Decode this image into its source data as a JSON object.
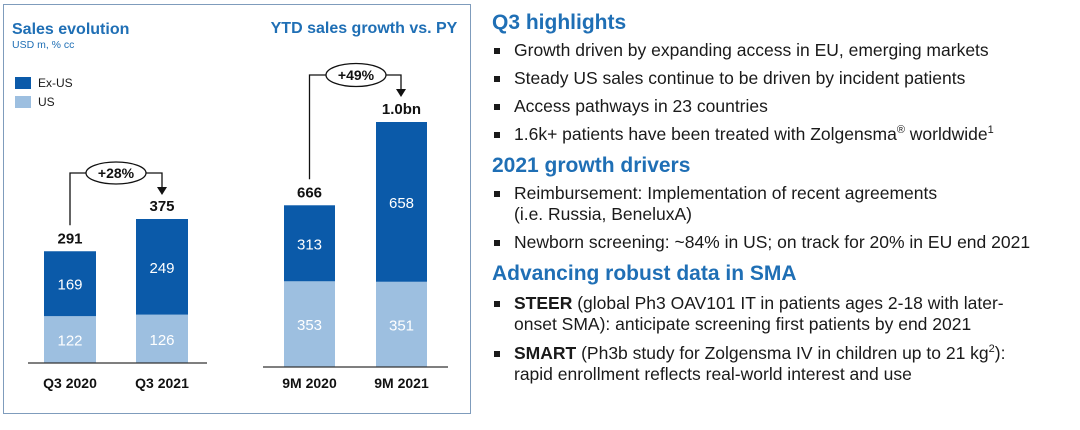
{
  "colors": {
    "ex_us": "#0b5aa9",
    "us": "#9dbfe0",
    "title_blue": "#1f6fb5",
    "panel_border": "#7f9cbc"
  },
  "legend": [
    {
      "label": "Ex-US",
      "color": "#0b5aa9"
    },
    {
      "label": "US",
      "color": "#9dbfe0"
    }
  ],
  "chart_data": [
    {
      "type": "bar",
      "stacked": true,
      "title": "Sales evolution",
      "subtitle": "USD m, % cc",
      "categories": [
        "Q3 2020",
        "Q3 2021"
      ],
      "series": [
        {
          "name": "US",
          "values": [
            122,
            126
          ]
        },
        {
          "name": "Ex-US",
          "values": [
            169,
            249
          ]
        }
      ],
      "totals": [
        "291",
        "375"
      ],
      "growth_label": "+28%",
      "legend_position": "top-left",
      "grid": false
    },
    {
      "type": "bar",
      "stacked": true,
      "title": "YTD sales growth vs. PY",
      "categories": [
        "9M 2020",
        "9M 2021"
      ],
      "series": [
        {
          "name": "US",
          "values": [
            353,
            351
          ]
        },
        {
          "name": "Ex-US",
          "values": [
            313,
            658
          ]
        }
      ],
      "totals": [
        "666",
        "1.0bn"
      ],
      "growth_label": "+49%",
      "grid": false
    }
  ],
  "highlights": {
    "title": "Q3 highlights",
    "items": [
      "Growth driven by expanding access in EU, emerging markets",
      "Steady US sales continue to be driven by incident patients",
      "Access pathways in 23 countries"
    ],
    "last_item": {
      "pre": "1.6k+ patients have been treated with Zolgensma",
      "reg": "®",
      "post": " worldwide",
      "footnote": "1"
    }
  },
  "drivers": {
    "title": "2021 growth drivers",
    "items": [
      {
        "line1": "Reimbursement: Implementation of recent agreements",
        "line2": "(i.e. Russia, BeneluxA)"
      },
      {
        "line1": "Newborn screening: ~84% in US; on track for 20% in EU end 2021",
        "line2": ""
      }
    ]
  },
  "sma": {
    "title": "Advancing robust data in SMA",
    "steer": {
      "bold": "STEER",
      "line1": " (global Ph3 OAV101 IT in patients ages 2-18 with later-",
      "line2": "onset SMA): anticipate screening first patients by end 2021"
    },
    "smart": {
      "bold": "SMART",
      "line1_pre": " (Ph3b study for Zolgensma IV in children up to 21 kg",
      "footnote": "2",
      "line1_post": "):",
      "line2": "rapid enrollment reflects real-world interest and use"
    }
  }
}
